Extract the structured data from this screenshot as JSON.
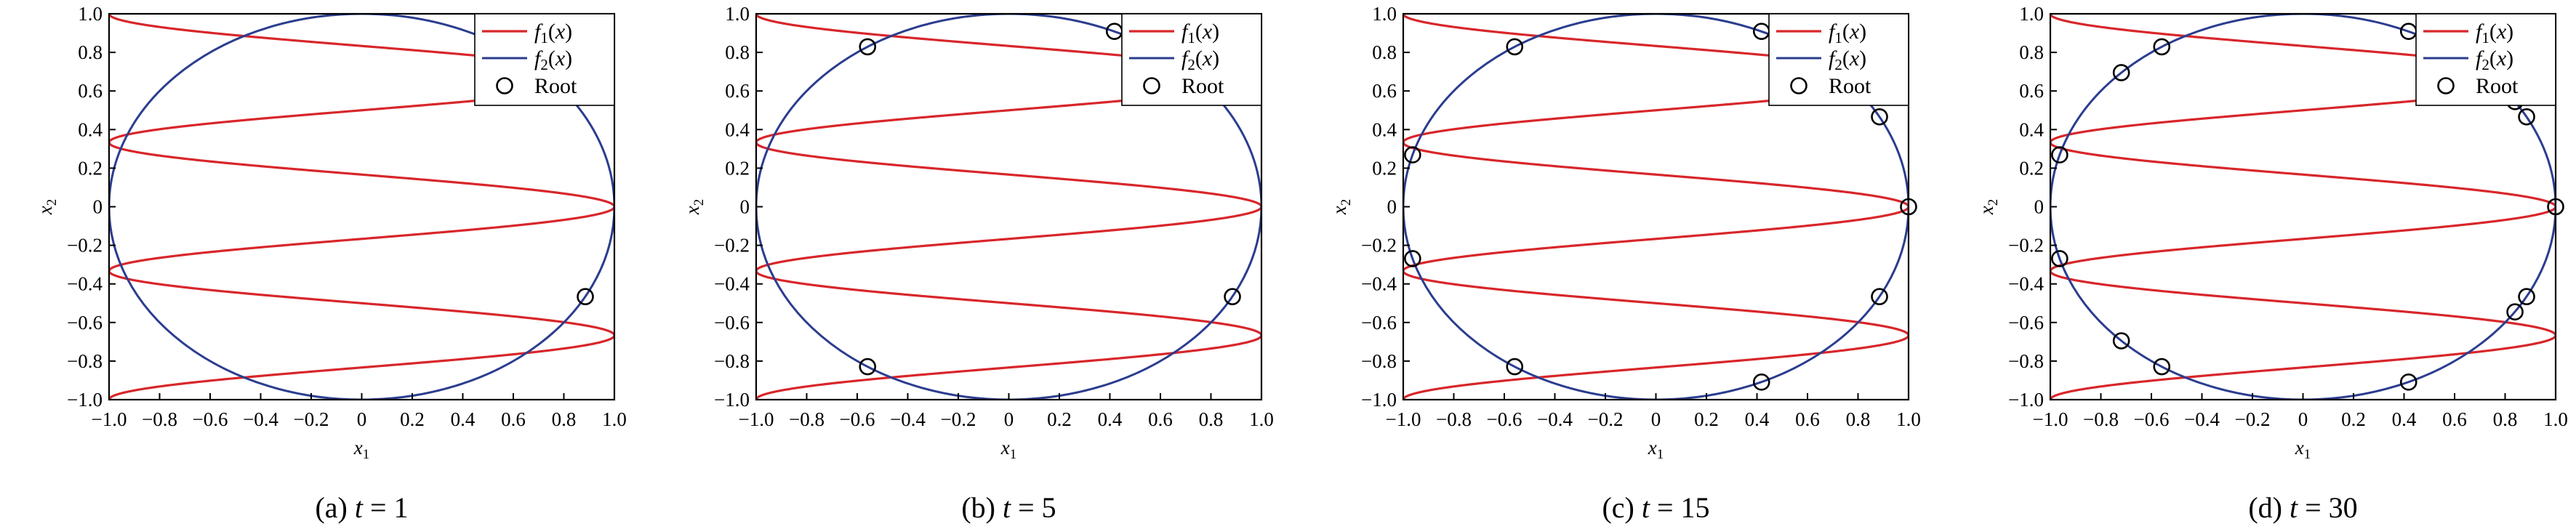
{
  "chart_data": [
    {
      "type": "line",
      "caption": {
        "prefix": "(a) ",
        "var": "t",
        "rest": " = 1"
      },
      "xlabel": "x1",
      "ylabel": "x2",
      "xlim": [
        -1,
        1
      ],
      "ylim": [
        -1,
        1
      ],
      "xticks": [
        "−1.0",
        "−0.8",
        "−0.6",
        "−0.4",
        "−0.2",
        "0",
        "0.2",
        "0.4",
        "0.6",
        "0.8",
        "1.0"
      ],
      "yticks": [
        "1.0",
        "0.8",
        "0.6",
        "0.4",
        "0.2",
        "0",
        "−0.2",
        "−0.4",
        "−0.6",
        "−0.8",
        "−1.0"
      ],
      "legend": {
        "position": "top-right",
        "items": [
          "f1(x)",
          "f2(x)",
          "Root"
        ]
      },
      "series": [
        {
          "name": "f1(x)",
          "color": "#d8262a",
          "values": "x1 = cos(3π·x2)"
        },
        {
          "name": "f2(x)",
          "color": "#2b3d8f",
          "values": "x1² + x2² = 1"
        }
      ],
      "roots": [
        [
          0.885,
          -0.466
        ]
      ]
    },
    {
      "type": "line",
      "caption": {
        "prefix": "(b) ",
        "var": "t",
        "rest": " = 5"
      },
      "xlabel": "x1",
      "ylabel": "x2",
      "xlim": [
        -1,
        1
      ],
      "ylim": [
        -1,
        1
      ],
      "xticks": [
        "−1.0",
        "−0.8",
        "−0.6",
        "−0.4",
        "−0.2",
        "0",
        "0.2",
        "0.4",
        "0.6",
        "0.8",
        "1.0"
      ],
      "yticks": [
        "1.0",
        "0.8",
        "0.6",
        "0.4",
        "0.2",
        "0",
        "−0.2",
        "−0.4",
        "−0.6",
        "−0.8",
        "−1.0"
      ],
      "legend": {
        "position": "top-right",
        "items": [
          "f1(x)",
          "f2(x)",
          "Root"
        ]
      },
      "series": [
        {
          "name": "f1(x)",
          "color": "#d8262a",
          "values": "x1 = cos(3π·x2)"
        },
        {
          "name": "f2(x)",
          "color": "#2b3d8f",
          "values": "x1² + x2² = 1"
        }
      ],
      "roots": [
        [
          0.418,
          0.909
        ],
        [
          -0.559,
          0.829
        ],
        [
          0.885,
          -0.466
        ],
        [
          -0.559,
          -0.829
        ]
      ]
    },
    {
      "type": "line",
      "caption": {
        "prefix": "(c) ",
        "var": "t",
        "rest": " = 15"
      },
      "xlabel": "x1",
      "ylabel": "x2",
      "xlim": [
        -1,
        1
      ],
      "ylim": [
        -1,
        1
      ],
      "xticks": [
        "−1.0",
        "−0.8",
        "−0.6",
        "−0.4",
        "−0.2",
        "0",
        "0.2",
        "0.4",
        "0.6",
        "0.8",
        "1.0"
      ],
      "yticks": [
        "1.0",
        "0.8",
        "0.6",
        "0.4",
        "0.2",
        "0",
        "−0.2",
        "−0.4",
        "−0.6",
        "−0.8",
        "−1.0"
      ],
      "legend": {
        "position": "top-right",
        "items": [
          "f1(x)",
          "f2(x)",
          "Root"
        ]
      },
      "series": [
        {
          "name": "f1(x)",
          "color": "#d8262a",
          "values": "x1 = cos(3π·x2)"
        },
        {
          "name": "f2(x)",
          "color": "#2b3d8f",
          "values": "x1² + x2² = 1"
        }
      ],
      "roots": [
        [
          0.418,
          0.909
        ],
        [
          -0.559,
          0.829
        ],
        [
          0.885,
          0.466
        ],
        [
          -0.963,
          0.269
        ],
        [
          1.0,
          0.0
        ],
        [
          -0.963,
          -0.269
        ],
        [
          0.885,
          -0.466
        ],
        [
          -0.559,
          -0.829
        ],
        [
          0.418,
          -0.909
        ]
      ]
    },
    {
      "type": "line",
      "caption": {
        "prefix": "(d) ",
        "var": "t",
        "rest": " = 30"
      },
      "xlabel": "x1",
      "ylabel": "x2",
      "xlim": [
        -1,
        1
      ],
      "ylim": [
        -1,
        1
      ],
      "xticks": [
        "−1.0",
        "−0.8",
        "−0.6",
        "−0.4",
        "−0.2",
        "0",
        "0.2",
        "0.4",
        "0.6",
        "0.8",
        "1.0"
      ],
      "yticks": [
        "1.0",
        "0.8",
        "0.6",
        "0.4",
        "0.2",
        "0",
        "−0.2",
        "−0.4",
        "−0.6",
        "−0.8",
        "−1.0"
      ],
      "legend": {
        "position": "top-right",
        "items": [
          "f1(x)",
          "f2(x)",
          "Root"
        ]
      },
      "series": [
        {
          "name": "f1(x)",
          "color": "#d8262a",
          "values": "x1 = cos(3π·x2)"
        },
        {
          "name": "f2(x)",
          "color": "#2b3d8f",
          "values": "x1² + x2² = 1"
        }
      ],
      "roots": [
        [
          0.418,
          0.909
        ],
        [
          -0.559,
          0.829
        ],
        [
          -0.719,
          0.695
        ],
        [
          0.839,
          0.545
        ],
        [
          0.885,
          0.466
        ],
        [
          -0.963,
          0.269
        ],
        [
          1.0,
          0.0
        ],
        [
          -0.963,
          -0.269
        ],
        [
          0.885,
          -0.466
        ],
        [
          0.839,
          -0.545
        ],
        [
          -0.719,
          -0.695
        ],
        [
          -0.559,
          -0.829
        ],
        [
          0.418,
          -0.909
        ]
      ]
    }
  ]
}
